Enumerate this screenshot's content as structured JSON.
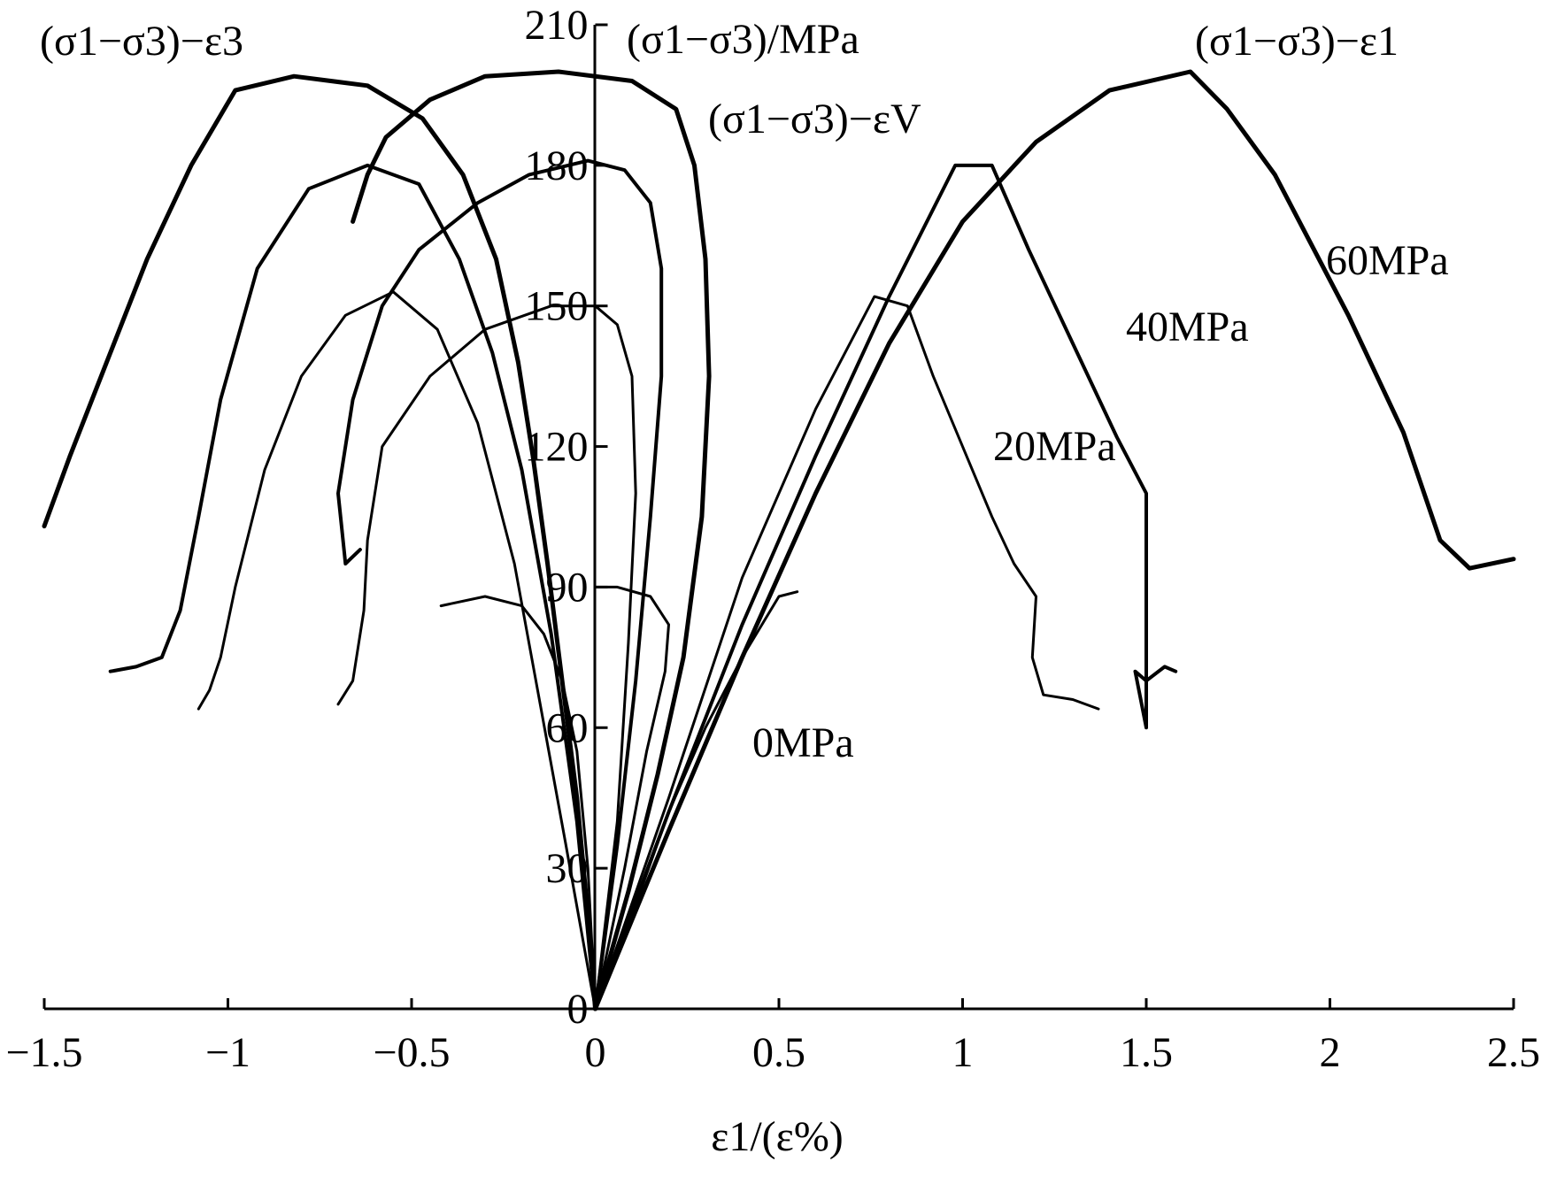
{
  "chart_data": {
    "type": "line",
    "xlabel": "ε1/(ε%)",
    "ylabel": "(σ1−σ3)/MPa",
    "xlim": [
      -1.5,
      2.5
    ],
    "ylim": [
      0,
      210
    ],
    "x_ticks": [
      "−1.5",
      "−1",
      "−0.5",
      "0",
      "0.5",
      "1",
      "1.5",
      "2",
      "2.5"
    ],
    "y_ticks": [
      "0",
      "30",
      "60",
      "90",
      "120",
      "150",
      "180",
      "210"
    ],
    "grid": false,
    "labels": {
      "e3": "(σ1−σ3)−ε3",
      "e1": "(σ1−σ3)−ε1",
      "ev": "(σ1−σ3)−εV"
    },
    "series": [
      {
        "name": "60MPa",
        "width": 5,
        "e1": [
          [
            0,
            0
          ],
          [
            0.2,
            38
          ],
          [
            0.4,
            75
          ],
          [
            0.6,
            110
          ],
          [
            0.8,
            142
          ],
          [
            1.0,
            168
          ],
          [
            1.2,
            185
          ],
          [
            1.4,
            196
          ],
          [
            1.62,
            200
          ],
          [
            1.72,
            192
          ],
          [
            1.85,
            178
          ],
          [
            2.05,
            148
          ],
          [
            2.2,
            123
          ],
          [
            2.3,
            100
          ],
          [
            2.38,
            94
          ],
          [
            2.5,
            96
          ]
        ],
        "e3": [
          [
            0,
            0
          ],
          [
            -0.02,
            20
          ],
          [
            -0.05,
            45
          ],
          [
            -0.09,
            70
          ],
          [
            -0.13,
            95
          ],
          [
            -0.17,
            118
          ],
          [
            -0.21,
            138
          ],
          [
            -0.27,
            160
          ],
          [
            -0.36,
            178
          ],
          [
            -0.47,
            190
          ],
          [
            -0.62,
            197
          ],
          [
            -0.82,
            199
          ],
          [
            -0.98,
            196
          ],
          [
            -1.1,
            180
          ],
          [
            -1.22,
            160
          ],
          [
            -1.33,
            138
          ],
          [
            -1.43,
            118
          ],
          [
            -1.5,
            103
          ]
        ],
        "ev": [
          [
            0,
            0
          ],
          [
            0.09,
            25
          ],
          [
            0.17,
            50
          ],
          [
            0.24,
            75
          ],
          [
            0.29,
            105
          ],
          [
            0.31,
            135
          ],
          [
            0.3,
            160
          ],
          [
            0.27,
            180
          ],
          [
            0.22,
            192
          ],
          [
            0.1,
            198
          ],
          [
            -0.1,
            200
          ],
          [
            -0.3,
            199
          ],
          [
            -0.45,
            194
          ],
          [
            -0.57,
            186
          ],
          [
            -0.62,
            178
          ],
          [
            -0.66,
            168
          ]
        ]
      },
      {
        "name": "40MPa",
        "width": 4,
        "e1": [
          [
            0,
            0
          ],
          [
            0.2,
            42
          ],
          [
            0.4,
            82
          ],
          [
            0.6,
            118
          ],
          [
            0.8,
            152
          ],
          [
            0.98,
            180
          ],
          [
            1.08,
            180
          ],
          [
            1.18,
            162
          ],
          [
            1.3,
            142
          ],
          [
            1.42,
            122
          ],
          [
            1.5,
            110
          ],
          [
            1.5,
            60
          ],
          [
            1.47,
            72
          ],
          [
            1.5,
            70
          ],
          [
            1.55,
            73
          ],
          [
            1.58,
            72
          ]
        ],
        "e3": [
          [
            0,
            0
          ],
          [
            -0.05,
            40
          ],
          [
            -0.12,
            80
          ],
          [
            -0.2,
            115
          ],
          [
            -0.28,
            140
          ],
          [
            -0.37,
            160
          ],
          [
            -0.48,
            176
          ],
          [
            -0.62,
            180
          ],
          [
            -0.78,
            175
          ],
          [
            -0.92,
            158
          ],
          [
            -1.02,
            130
          ],
          [
            -1.08,
            105
          ],
          [
            -1.13,
            85
          ],
          [
            -1.18,
            75
          ],
          [
            -1.25,
            73
          ],
          [
            -1.32,
            72
          ]
        ],
        "ev": [
          [
            0,
            0
          ],
          [
            0.06,
            35
          ],
          [
            0.11,
            70
          ],
          [
            0.15,
            105
          ],
          [
            0.18,
            135
          ],
          [
            0.18,
            158
          ],
          [
            0.15,
            172
          ],
          [
            0.08,
            179
          ],
          [
            -0.02,
            181
          ],
          [
            -0.18,
            178
          ],
          [
            -0.32,
            172
          ],
          [
            -0.48,
            162
          ],
          [
            -0.58,
            150
          ],
          [
            -0.66,
            130
          ],
          [
            -0.7,
            110
          ],
          [
            -0.68,
            95
          ],
          [
            -0.64,
            98
          ]
        ]
      },
      {
        "name": "20MPa",
        "width": 3,
        "e1": [
          [
            0,
            0
          ],
          [
            0.2,
            45
          ],
          [
            0.4,
            92
          ],
          [
            0.6,
            128
          ],
          [
            0.76,
            152
          ],
          [
            0.85,
            150
          ],
          [
            0.92,
            135
          ],
          [
            1.0,
            120
          ],
          [
            1.08,
            105
          ],
          [
            1.14,
            95
          ],
          [
            1.2,
            88
          ],
          [
            1.19,
            75
          ],
          [
            1.22,
            67
          ],
          [
            1.3,
            66
          ],
          [
            1.37,
            64
          ]
        ],
        "e3": [
          [
            0,
            0
          ],
          [
            -0.08,
            35
          ],
          [
            -0.15,
            65
          ],
          [
            -0.22,
            95
          ],
          [
            -0.32,
            125
          ],
          [
            -0.43,
            145
          ],
          [
            -0.55,
            153
          ],
          [
            -0.68,
            148
          ],
          [
            -0.8,
            135
          ],
          [
            -0.9,
            115
          ],
          [
            -0.98,
            90
          ],
          [
            -1.02,
            75
          ],
          [
            -1.05,
            68
          ],
          [
            -1.08,
            64
          ]
        ],
        "ev": [
          [
            0,
            0
          ],
          [
            0.06,
            40
          ],
          [
            0.09,
            78
          ],
          [
            0.11,
            110
          ],
          [
            0.1,
            135
          ],
          [
            0.06,
            146
          ],
          [
            0.0,
            150
          ],
          [
            -0.12,
            150
          ],
          [
            -0.3,
            145
          ],
          [
            -0.45,
            135
          ],
          [
            -0.58,
            120
          ],
          [
            -0.62,
            100
          ],
          [
            -0.63,
            85
          ],
          [
            -0.66,
            70
          ],
          [
            -0.7,
            65
          ]
        ]
      },
      {
        "name": "0MPa",
        "width": 3,
        "e1": [
          [
            0,
            0
          ],
          [
            0.1,
            20
          ],
          [
            0.2,
            42
          ],
          [
            0.3,
            60
          ],
          [
            0.4,
            75
          ],
          [
            0.5,
            88
          ],
          [
            0.55,
            89
          ]
        ],
        "e3": [
          [
            0,
            0
          ],
          [
            -0.02,
            30
          ],
          [
            -0.05,
            55
          ],
          [
            -0.09,
            70
          ],
          [
            -0.14,
            80
          ],
          [
            -0.2,
            86
          ],
          [
            -0.3,
            88
          ],
          [
            -0.42,
            86
          ]
        ],
        "ev": [
          [
            0,
            0
          ],
          [
            0.08,
            30
          ],
          [
            0.14,
            55
          ],
          [
            0.19,
            72
          ],
          [
            0.2,
            82
          ],
          [
            0.15,
            88
          ],
          [
            0.06,
            90
          ],
          [
            0.0,
            90
          ]
        ]
      }
    ],
    "curve_labels": [
      "60MPa",
      "40MPa",
      "20MPa",
      "0MPa"
    ]
  }
}
